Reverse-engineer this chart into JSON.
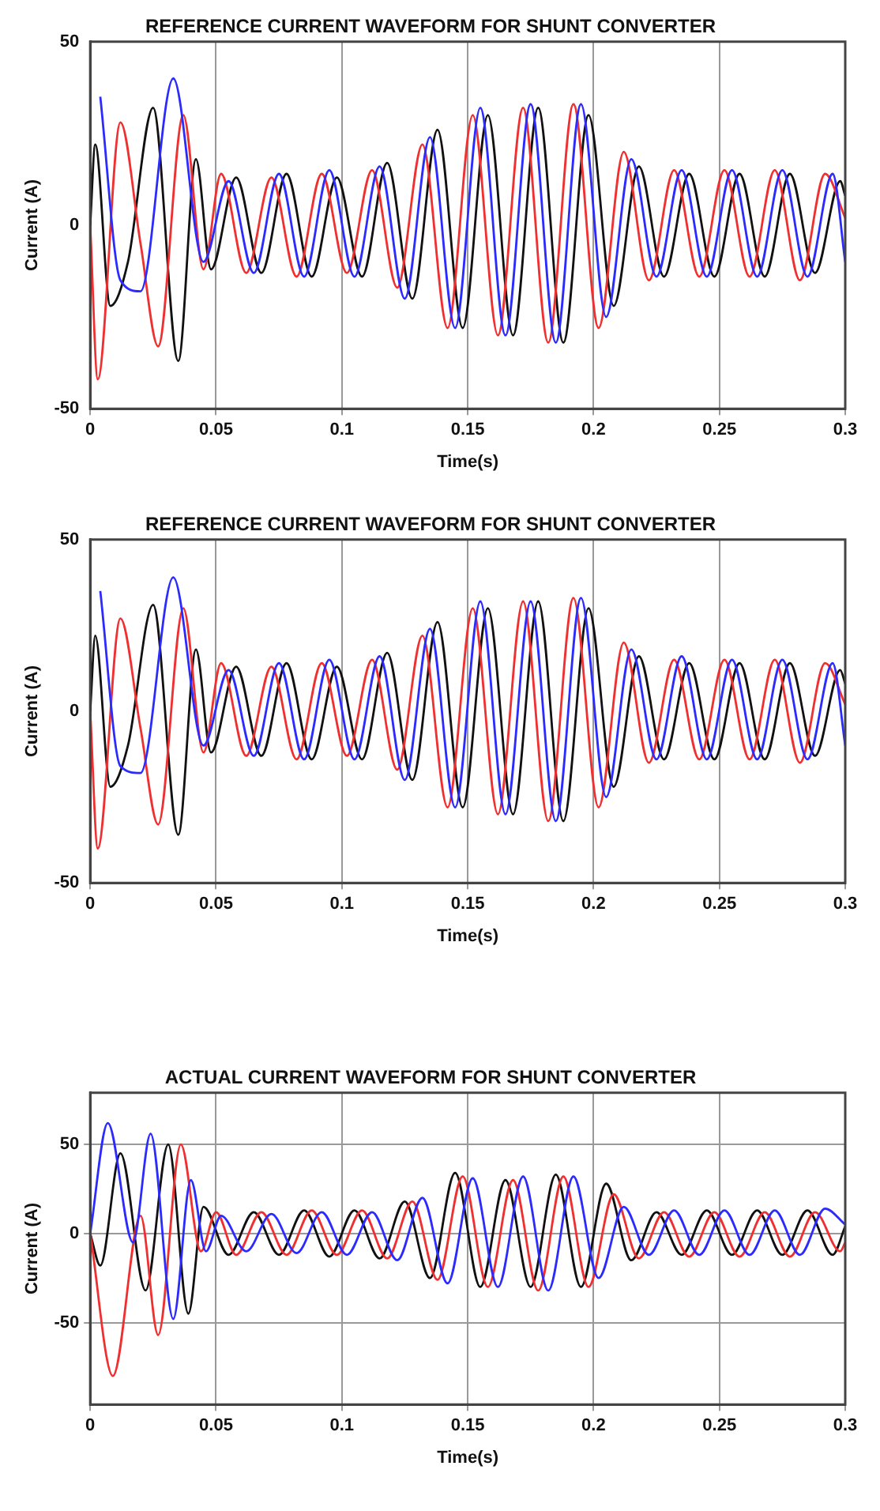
{
  "chart_data": [
    {
      "type": "line",
      "title": "REFERENCE CURRENT WAVEFORM FOR SHUNT CONVERTER",
      "xlabel": "Time(s)",
      "ylabel": "Current (A)",
      "xlim": [
        0,
        0.3
      ],
      "xticks": [
        0,
        0.05,
        0.1,
        0.15,
        0.2,
        0.25,
        0.3
      ],
      "ylim": [
        -50,
        50
      ],
      "yticks": [
        -50,
        0,
        50
      ],
      "grid": "x",
      "legend": false,
      "series": [
        {
          "color": "#2b2bff",
          "x": [
            0.004,
            0.012,
            0.02,
            0.033,
            0.045,
            0.055,
            0.065,
            0.075,
            0.085,
            0.095,
            0.105,
            0.115,
            0.125,
            0.135,
            0.145,
            0.155,
            0.165,
            0.175,
            0.185,
            0.195,
            0.205,
            0.215,
            0.225,
            0.235,
            0.245,
            0.255,
            0.265,
            0.275,
            0.285,
            0.295,
            0.3
          ],
          "values": [
            35,
            -15,
            -18,
            40,
            -10,
            12,
            -13,
            14,
            -14,
            15,
            -14,
            16,
            -20,
            24,
            -28,
            32,
            -30,
            33,
            -32,
            33,
            -25,
            18,
            -14,
            15,
            -14,
            15,
            -14,
            15,
            -14,
            14,
            -10
          ]
        },
        {
          "color": "#f03030",
          "x": [
            0,
            0.003,
            0.012,
            0.02,
            0.027,
            0.037,
            0.045,
            0.052,
            0.062,
            0.072,
            0.082,
            0.092,
            0.102,
            0.112,
            0.122,
            0.132,
            0.142,
            0.152,
            0.162,
            0.172,
            0.182,
            0.192,
            0.202,
            0.212,
            0.222,
            0.232,
            0.242,
            0.252,
            0.262,
            0.272,
            0.282,
            0.292,
            0.3
          ],
          "values": [
            0,
            -42,
            28,
            -5,
            -33,
            30,
            -12,
            14,
            -13,
            13,
            -14,
            14,
            -13,
            15,
            -17,
            22,
            -28,
            30,
            -30,
            32,
            -32,
            33,
            -28,
            20,
            -15,
            15,
            -14,
            15,
            -14,
            15,
            -15,
            14,
            2
          ]
        },
        {
          "color": "#111111",
          "x": [
            0,
            0.002,
            0.008,
            0.015,
            0.025,
            0.035,
            0.042,
            0.048,
            0.058,
            0.068,
            0.078,
            0.088,
            0.098,
            0.108,
            0.118,
            0.128,
            0.138,
            0.148,
            0.158,
            0.168,
            0.178,
            0.188,
            0.198,
            0.208,
            0.218,
            0.228,
            0.238,
            0.248,
            0.258,
            0.268,
            0.278,
            0.288,
            0.298,
            0.3
          ],
          "values": [
            0,
            22,
            -22,
            -10,
            32,
            -37,
            18,
            -12,
            13,
            -13,
            14,
            -14,
            13,
            -14,
            17,
            -20,
            26,
            -28,
            30,
            -30,
            32,
            -32,
            30,
            -22,
            16,
            -14,
            14,
            -14,
            14,
            -14,
            14,
            -13,
            12,
            8
          ]
        }
      ]
    },
    {
      "type": "line",
      "title": "REFERENCE CURRENT WAVEFORM FOR SHUNT CONVERTER",
      "xlabel": "Time(s)",
      "ylabel": "Current (A)",
      "xlim": [
        0,
        0.3
      ],
      "xticks": [
        0,
        0.05,
        0.1,
        0.15,
        0.2,
        0.25,
        0.3
      ],
      "ylim": [
        -50,
        50
      ],
      "yticks": [
        -50,
        0,
        50
      ],
      "grid": "x",
      "legend": false,
      "series": [
        {
          "color": "#2b2bff",
          "x": [
            0.004,
            0.012,
            0.02,
            0.033,
            0.045,
            0.055,
            0.065,
            0.075,
            0.085,
            0.095,
            0.105,
            0.115,
            0.125,
            0.135,
            0.145,
            0.155,
            0.165,
            0.175,
            0.185,
            0.195,
            0.205,
            0.215,
            0.225,
            0.235,
            0.245,
            0.255,
            0.265,
            0.275,
            0.285,
            0.295,
            0.3
          ],
          "values": [
            35,
            -16,
            -18,
            39,
            -10,
            12,
            -13,
            14,
            -14,
            15,
            -14,
            16,
            -20,
            24,
            -28,
            32,
            -30,
            32,
            -32,
            33,
            -25,
            18,
            -14,
            16,
            -14,
            15,
            -14,
            15,
            -14,
            14,
            -10
          ]
        },
        {
          "color": "#f03030",
          "x": [
            0,
            0.003,
            0.012,
            0.02,
            0.027,
            0.037,
            0.045,
            0.052,
            0.062,
            0.072,
            0.082,
            0.092,
            0.102,
            0.112,
            0.122,
            0.132,
            0.142,
            0.152,
            0.162,
            0.172,
            0.182,
            0.192,
            0.202,
            0.212,
            0.222,
            0.232,
            0.242,
            0.252,
            0.262,
            0.272,
            0.282,
            0.292,
            0.3
          ],
          "values": [
            0,
            -40,
            27,
            -5,
            -33,
            30,
            -12,
            14,
            -13,
            13,
            -14,
            14,
            -13,
            15,
            -17,
            22,
            -28,
            30,
            -30,
            32,
            -32,
            33,
            -28,
            20,
            -15,
            15,
            -14,
            15,
            -14,
            15,
            -15,
            14,
            2
          ]
        },
        {
          "color": "#111111",
          "x": [
            0,
            0.002,
            0.008,
            0.015,
            0.025,
            0.035,
            0.042,
            0.048,
            0.058,
            0.068,
            0.078,
            0.088,
            0.098,
            0.108,
            0.118,
            0.128,
            0.138,
            0.148,
            0.158,
            0.168,
            0.178,
            0.188,
            0.198,
            0.208,
            0.218,
            0.228,
            0.238,
            0.248,
            0.258,
            0.268,
            0.278,
            0.288,
            0.298,
            0.3
          ],
          "values": [
            0,
            22,
            -22,
            -10,
            31,
            -36,
            18,
            -12,
            13,
            -13,
            14,
            -14,
            13,
            -14,
            17,
            -20,
            26,
            -28,
            30,
            -30,
            32,
            -32,
            30,
            -22,
            16,
            -14,
            14,
            -14,
            14,
            -14,
            14,
            -13,
            12,
            8
          ]
        }
      ]
    },
    {
      "type": "line",
      "title": "ACTUAL CURRENT WAVEFORM FOR SHUNT CONVERTER",
      "xlabel": "Time(s)",
      "ylabel": "Current (A)",
      "xlim": [
        0,
        0.3
      ],
      "xticks": [
        0,
        0.05,
        0.1,
        0.15,
        0.2,
        0.25,
        0.3
      ],
      "ylim": [
        -96,
        79
      ],
      "yticks": [
        -50,
        0,
        50
      ],
      "grid": true,
      "legend": false,
      "series": [
        {
          "color": "#2b2bff",
          "x": [
            0,
            0.007,
            0.017,
            0.024,
            0.033,
            0.04,
            0.046,
            0.052,
            0.062,
            0.072,
            0.082,
            0.092,
            0.102,
            0.112,
            0.122,
            0.132,
            0.142,
            0.152,
            0.162,
            0.172,
            0.182,
            0.192,
            0.202,
            0.212,
            0.222,
            0.232,
            0.242,
            0.252,
            0.262,
            0.272,
            0.282,
            0.292,
            0.3
          ],
          "values": [
            0,
            62,
            -5,
            56,
            -48,
            30,
            -10,
            10,
            -10,
            11,
            -11,
            12,
            -12,
            12,
            -15,
            20,
            -28,
            31,
            -30,
            32,
            -32,
            32,
            -25,
            15,
            -12,
            13,
            -12,
            13,
            -12,
            13,
            -12,
            14,
            5
          ]
        },
        {
          "color": "#f03030",
          "x": [
            0,
            0.009,
            0.02,
            0.027,
            0.036,
            0.044,
            0.05,
            0.058,
            0.068,
            0.078,
            0.088,
            0.098,
            0.108,
            0.118,
            0.128,
            0.138,
            0.148,
            0.158,
            0.168,
            0.178,
            0.188,
            0.198,
            0.208,
            0.218,
            0.228,
            0.238,
            0.248,
            0.258,
            0.268,
            0.278,
            0.288,
            0.298,
            0.3
          ],
          "values": [
            0,
            -80,
            10,
            -57,
            50,
            -10,
            12,
            -12,
            12,
            -12,
            13,
            -12,
            13,
            -14,
            18,
            -26,
            32,
            -30,
            30,
            -32,
            32,
            -30,
            22,
            -14,
            12,
            -13,
            12,
            -13,
            12,
            -13,
            12,
            -10,
            -5
          ]
        },
        {
          "color": "#111111",
          "x": [
            0,
            0.004,
            0.012,
            0.022,
            0.031,
            0.039,
            0.045,
            0.055,
            0.065,
            0.075,
            0.085,
            0.095,
            0.105,
            0.115,
            0.125,
            0.135,
            0.145,
            0.155,
            0.165,
            0.175,
            0.185,
            0.195,
            0.205,
            0.215,
            0.225,
            0.235,
            0.245,
            0.255,
            0.265,
            0.275,
            0.285,
            0.295,
            0.3
          ],
          "values": [
            0,
            -18,
            45,
            -32,
            50,
            -45,
            15,
            -12,
            12,
            -12,
            13,
            -13,
            13,
            -14,
            18,
            -25,
            34,
            -30,
            30,
            -30,
            33,
            -30,
            28,
            -15,
            12,
            -12,
            13,
            -12,
            13,
            -12,
            13,
            -12,
            4
          ]
        }
      ]
    }
  ]
}
